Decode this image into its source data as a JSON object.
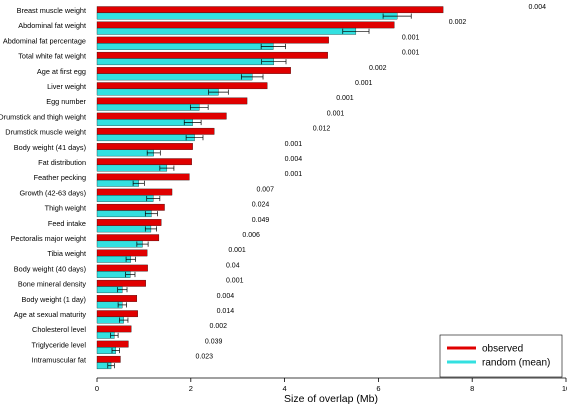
{
  "chart_data": {
    "type": "bar",
    "orientation": "horizontal",
    "title": "",
    "xlabel": "Size of overlap (Mb)",
    "ylabel": "",
    "xlim": [
      0,
      10
    ],
    "xticks": [
      0,
      2,
      4,
      6,
      8,
      10
    ],
    "grid": false,
    "legend_position": "bottom-right",
    "colors": {
      "observed": "#e00000",
      "random": "#33e0e0",
      "error_bar": "#000000"
    },
    "categories": [
      "Breast muscle weight",
      "Abdominal fat weight",
      "Abdominal fat percentage",
      "Total white fat weight",
      "Age at first egg",
      "Liver weight",
      "Egg number",
      "Drumstick and thigh weight",
      "Drumstick muscle weight",
      "Body weight (41 days)",
      "Fat distribution",
      "Feather pecking",
      "Growth (42-63 days)",
      "Thigh weight",
      "Feed intake",
      "Pectoralis major weight",
      "Tibia weight",
      "Body weight (40 days)",
      "Bone mineral density",
      "Body weight (1 day)",
      "Age at sexual maturity",
      "Cholesterol level",
      "Triglyceride level",
      "Intramuscular fat"
    ],
    "series": [
      {
        "name": "observed",
        "values": [
          7.38,
          6.34,
          4.94,
          4.92,
          4.13,
          3.63,
          3.2,
          2.76,
          2.5,
          2.04,
          2.02,
          1.97,
          1.6,
          1.44,
          1.37,
          1.32,
          1.07,
          1.08,
          1.04,
          0.85,
          0.87,
          0.73,
          0.67,
          0.5
        ]
      },
      {
        "name": "random (mean)",
        "values": [
          6.4,
          5.52,
          3.76,
          3.77,
          3.31,
          2.59,
          2.18,
          2.04,
          2.08,
          1.21,
          1.49,
          0.89,
          1.2,
          1.16,
          1.15,
          0.97,
          0.72,
          0.71,
          0.54,
          0.54,
          0.57,
          0.37,
          0.4,
          0.3
        ],
        "error": [
          0.3,
          0.28,
          0.26,
          0.26,
          0.23,
          0.21,
          0.19,
          0.18,
          0.18,
          0.14,
          0.15,
          0.12,
          0.14,
          0.13,
          0.12,
          0.12,
          0.1,
          0.1,
          0.1,
          0.09,
          0.09,
          0.08,
          0.08,
          0.07
        ]
      }
    ],
    "annotations": [
      "0.004",
      "0.002",
      "0.001",
      "0.001",
      "0.002",
      "0.001",
      "0.001",
      "0.001",
      "0.012",
      "0.001",
      "0.004",
      "0.001",
      "0.007",
      "0.024",
      "0.049",
      "0.006",
      "0.001",
      "0.04",
      "0.001",
      "0.004",
      "0.014",
      "0.002",
      "0.039",
      "0.023"
    ],
    "annotation_x": [
      9.2,
      7.5,
      6.5,
      6.5,
      5.8,
      5.5,
      5.1,
      4.9,
      4.6,
      4.0,
      4.0,
      4.0,
      3.4,
      3.3,
      3.3,
      3.1,
      2.8,
      2.75,
      2.75,
      2.55,
      2.55,
      2.4,
      2.3,
      2.1
    ]
  }
}
